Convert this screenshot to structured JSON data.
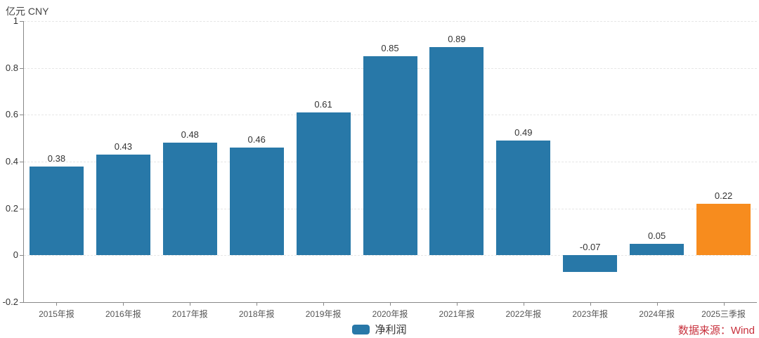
{
  "header": {
    "unit_label": "亿元 CNY"
  },
  "chart_data": {
    "type": "bar",
    "title": "",
    "xlabel": "",
    "ylabel": "亿元 CNY",
    "categories": [
      "2015年报",
      "2016年报",
      "2017年报",
      "2018年报",
      "2019年报",
      "2020年报",
      "2021年报",
      "2022年报",
      "2023年报",
      "2024年报",
      "2025三季报"
    ],
    "values": [
      0.38,
      0.43,
      0.48,
      0.46,
      0.61,
      0.85,
      0.89,
      0.49,
      -0.07,
      0.05,
      0.22
    ],
    "value_labels": [
      "0.38",
      "0.43",
      "0.48",
      "0.46",
      "0.61",
      "0.85",
      "0.89",
      "0.49",
      "-0.07",
      "0.05",
      "0.22"
    ],
    "colors": [
      "#2878a8",
      "#2878a8",
      "#2878a8",
      "#2878a8",
      "#2878a8",
      "#2878a8",
      "#2878a8",
      "#2878a8",
      "#2878a8",
      "#2878a8",
      "#f78c1e"
    ],
    "ylim": [
      -0.2,
      1
    ],
    "yticks": [
      {
        "value": -0.2,
        "label": "-0.2"
      },
      {
        "value": 0,
        "label": "0"
      },
      {
        "value": 0.2,
        "label": "0.2"
      },
      {
        "value": 0.4,
        "label": "0.4"
      },
      {
        "value": 0.6,
        "label": "0.6"
      },
      {
        "value": 0.8,
        "label": "0.8"
      },
      {
        "value": 1,
        "label": "1"
      }
    ],
    "grid": "horizontal-dashed",
    "legend": {
      "position": "bottom-center",
      "entries": [
        {
          "label": "净利润",
          "color": "#2878a8"
        }
      ]
    }
  },
  "footer": {
    "source_label": "数据来源：Wind",
    "source_color": "#c8303c"
  }
}
